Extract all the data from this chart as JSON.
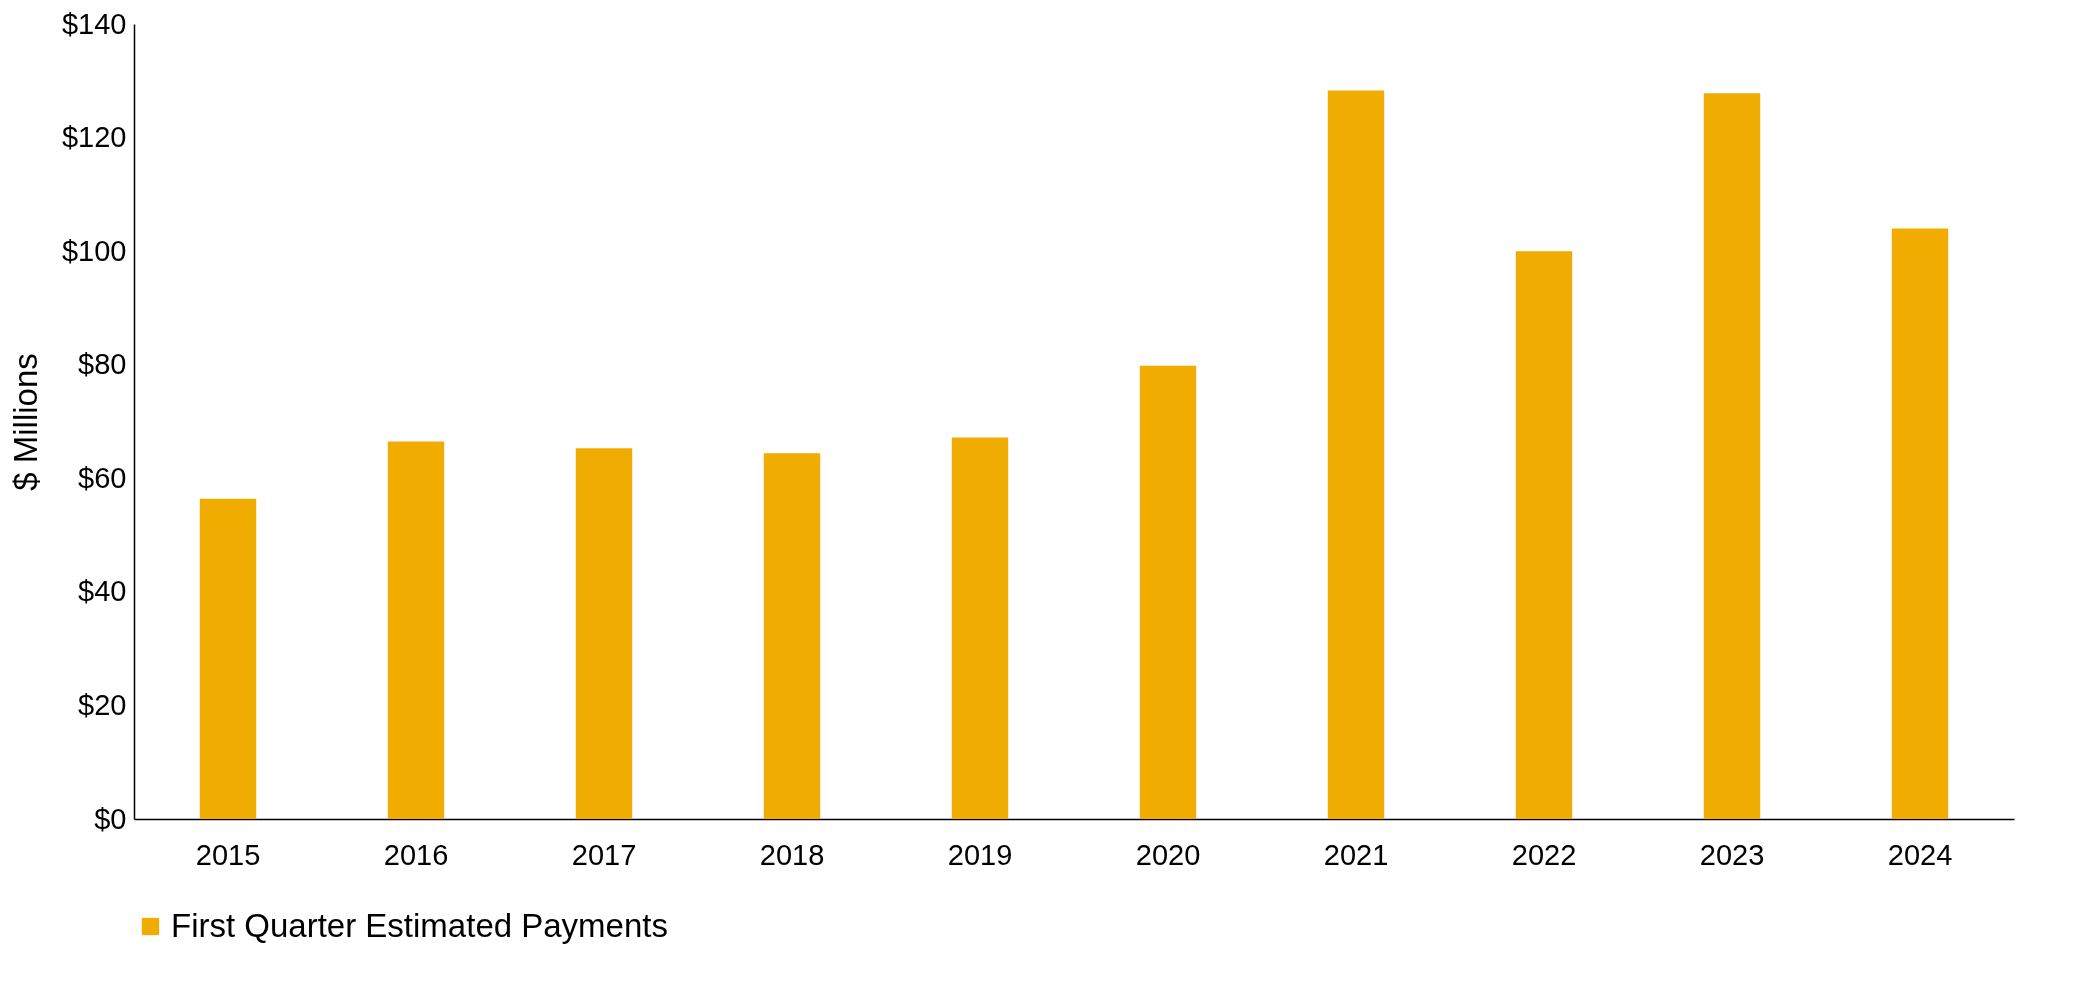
{
  "chart_data": {
    "type": "bar",
    "ylabel": "$ Millions",
    "categories": [
      "2015",
      "2016",
      "2017",
      "2018",
      "2019",
      "2020",
      "2021",
      "2022",
      "2023",
      "2024"
    ],
    "series": [
      {
        "name": "First Quarter Estimated Payments",
        "color": "#f0ac00",
        "values": [
          56.4,
          66.5,
          65.3,
          64.4,
          67.2,
          79.8,
          128.3,
          100.0,
          127.8,
          104.0
        ]
      }
    ],
    "ylim": [
      0,
      140
    ],
    "yticks": [
      {
        "value": 0,
        "label": "$0"
      },
      {
        "value": 20,
        "label": "$20"
      },
      {
        "value": 40,
        "label": "$40"
      },
      {
        "value": 60,
        "label": "$60"
      },
      {
        "value": 80,
        "label": "$80"
      },
      {
        "value": 100,
        "label": "$100"
      },
      {
        "value": 120,
        "label": "$120"
      },
      {
        "value": 140,
        "label": "$140"
      }
    ],
    "grid": false,
    "legend": "bottom"
  }
}
